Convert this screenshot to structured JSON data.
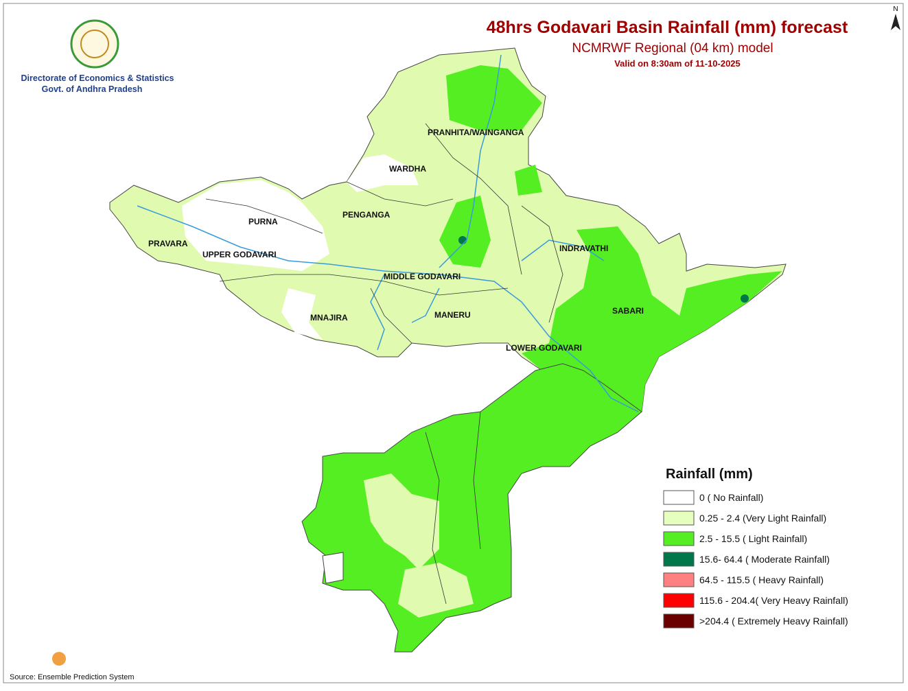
{
  "header": {
    "org_line1": "Directorate of Economics & Statistics",
    "org_line2": "Govt. of Andhra Pradesh",
    "title": "48hrs Godavari Basin Rainfall (mm) forecast",
    "subtitle": "NCMRWF Regional (04 km) model",
    "valid": "Valid on 8:30am of 11-10-2025"
  },
  "north": "N",
  "basins": [
    "PRANHITA/WAINGANGA",
    "WARDHA",
    "PENGANGA",
    "PURNA",
    "PRAVARA",
    "UPPER GODAVARI",
    "INDRAVATHI",
    "MIDDLE GODAVARI",
    "SABARI",
    "MNAJIRA",
    "MANERU",
    "LOWER GODAVARI"
  ],
  "legend": {
    "title": "Rainfall (mm)",
    "items": [
      {
        "label": "0 ( No Rainfall)",
        "color": "#ffffff"
      },
      {
        "label": "0.25 - 2.4 (Very Light Rainfall)",
        "color": "#e6ffbf"
      },
      {
        "label": "2.5 - 15.5 ( Light Rainfall)",
        "color": "#55ee22"
      },
      {
        "label": "15.6- 64.4 ( Moderate Rainfall)",
        "color": "#00774a"
      },
      {
        "label": "64.5 - 115.5 ( Heavy Rainfall)",
        "color": "#ff8080"
      },
      {
        "label": "115.6 - 204.4( Very Heavy Rainfall)",
        "color": "#ff0000"
      },
      {
        "label": ">204.4 ( Extremely Heavy Rainfall)",
        "color": "#6b0000"
      }
    ]
  },
  "source": "Source: Ensemble Prediction System"
}
